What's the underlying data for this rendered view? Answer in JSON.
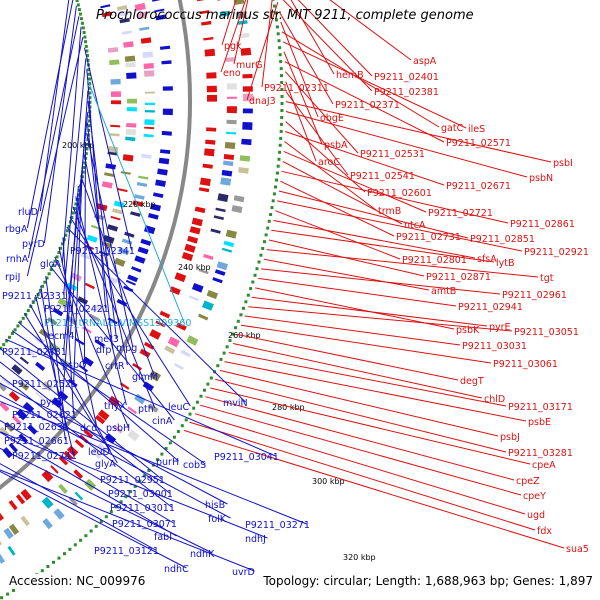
{
  "title": "Prochlorococcus marinus str. MIT 9211, complete genome",
  "footer": {
    "accession": "Accession: NC_009976",
    "summary": "Topology: circular; Length: 1,688,963 bp; Genes: 1,897"
  },
  "scale_labels": [
    "200 kbp",
    "220 kbp",
    "240 kbp",
    "260 kbp",
    "280 kbp",
    "300 kbp",
    "320 kbp"
  ],
  "colors": {
    "forward_strand": "#dd1111",
    "reverse_strand": "#1111cc",
    "rna_label": "#22aadd",
    "backbone": "#888888",
    "tick": "#2e8b2e"
  },
  "forward_labels": [
    "pgk",
    "murG",
    "eno",
    "aspA",
    "hemB",
    "P9211_02401",
    "P9211_02311",
    "P9211_02381",
    "dnaJ3",
    "P9211_02371",
    "obgE",
    "gatC",
    "ileS",
    "psbA",
    "P9211_02571",
    "P9211_02531",
    "aroC",
    "P9211_02541",
    "psbI",
    "psbN",
    "P9211_02601",
    "P9211_02671",
    "trmB",
    "P9211_02721",
    "ntcA",
    "P9211_02861",
    "P9211_02731",
    "P9211_02851",
    "P9211_02921",
    "P9211_02801",
    "sfsA",
    "lytB",
    "P9211_02871",
    "tgt",
    "amtB",
    "P9211_02961",
    "P9211_02941",
    "psbK",
    "pyrE",
    "P9211_03051",
    "P9211_03031",
    "P9211_03061",
    "degT",
    "chlD",
    "P9211_03171",
    "psbE",
    "psbJ",
    "P9211_03281",
    "cpeA",
    "cpeZ",
    "cpeY",
    "ugd",
    "fdx",
    "sua5"
  ],
  "reverse_labels": [
    "rluD",
    "rbgA",
    "pyrD",
    "rnhA",
    "gloA",
    "rpiJ",
    "P9211_02341",
    "P9211_02331",
    "P9211_02421",
    "P9211_tRNALeuVIMSS1309360",
    "ecm4",
    "met3",
    "P9211_02481",
    "dfp",
    "mpg",
    "psbO",
    "crtR",
    "P9211_02521",
    "glmM",
    "pyrB",
    "thyX",
    "pth",
    "leuC",
    "mviN",
    "P9211_02621",
    "dcd",
    "psbH",
    "cinA",
    "P9211_02631",
    "P9211_02661",
    "P9211_02741",
    "leuD",
    "glyA",
    "purH",
    "cobS",
    "P9211_03041",
    "P9211_02951",
    "P9211_03001",
    "P9211_03011",
    "hisB",
    "folK",
    "P9211_03271",
    "P9211_03071",
    "fabI",
    "ndhJ",
    "ndhK",
    "P9211_03121",
    "ndhC",
    "uvrD"
  ]
}
